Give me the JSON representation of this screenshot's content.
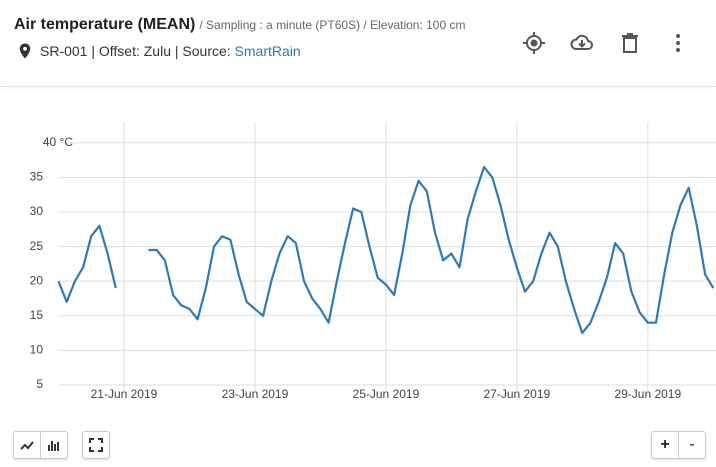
{
  "header": {
    "title": "Air temperature (MEAN)",
    "subtitle": "/ Sampling : a minute (PT60S) / Elevation: 100 cm",
    "meta": "SR-001 | Offset: Zulu | Source:",
    "source_link": "SmartRain"
  },
  "controls": {
    "zoom_in": "+",
    "zoom_out": "-"
  },
  "chart_data": {
    "type": "line",
    "x": [
      "2019-06-20T00:00",
      "2019-06-20T03:00",
      "2019-06-20T06:00",
      "2019-06-20T09:00",
      "2019-06-20T12:00",
      "2019-06-20T15:00",
      "2019-06-20T18:00",
      "2019-06-20T21:00",
      "2019-06-21T00:00",
      "2019-06-21T03:00",
      "2019-06-21T06:00",
      "2019-06-21T09:00",
      "2019-06-21T12:00",
      "2019-06-21T15:00",
      "2019-06-21T18:00",
      "2019-06-21T21:00",
      "2019-06-22T00:00",
      "2019-06-22T03:00",
      "2019-06-22T06:00",
      "2019-06-22T09:00",
      "2019-06-22T12:00",
      "2019-06-22T15:00",
      "2019-06-22T18:00",
      "2019-06-22T21:00",
      "2019-06-23T00:00",
      "2019-06-23T03:00",
      "2019-06-23T06:00",
      "2019-06-23T09:00",
      "2019-06-23T12:00",
      "2019-06-23T15:00",
      "2019-06-23T18:00",
      "2019-06-23T21:00",
      "2019-06-24T00:00",
      "2019-06-24T03:00",
      "2019-06-24T06:00",
      "2019-06-24T09:00",
      "2019-06-24T12:00",
      "2019-06-24T15:00",
      "2019-06-24T18:00",
      "2019-06-24T21:00",
      "2019-06-25T00:00",
      "2019-06-25T03:00",
      "2019-06-25T06:00",
      "2019-06-25T09:00",
      "2019-06-25T12:00",
      "2019-06-25T15:00",
      "2019-06-25T18:00",
      "2019-06-25T21:00",
      "2019-06-26T00:00",
      "2019-06-26T03:00",
      "2019-06-26T06:00",
      "2019-06-26T09:00",
      "2019-06-26T12:00",
      "2019-06-26T15:00",
      "2019-06-26T18:00",
      "2019-06-26T21:00",
      "2019-06-27T00:00",
      "2019-06-27T03:00",
      "2019-06-27T06:00",
      "2019-06-27T09:00",
      "2019-06-27T12:00",
      "2019-06-27T15:00",
      "2019-06-27T18:00",
      "2019-06-27T21:00",
      "2019-06-28T00:00",
      "2019-06-28T03:00",
      "2019-06-28T06:00",
      "2019-06-28T09:00",
      "2019-06-28T12:00",
      "2019-06-28T15:00",
      "2019-06-28T18:00",
      "2019-06-28T21:00",
      "2019-06-29T00:00",
      "2019-06-29T03:00",
      "2019-06-29T06:00",
      "2019-06-29T09:00",
      "2019-06-29T12:00",
      "2019-06-29T15:00",
      "2019-06-29T18:00",
      "2019-06-29T21:00",
      "2019-06-30T00:00"
    ],
    "series": [
      {
        "color": "#2f7ab5",
        "values": [
          20,
          17,
          20,
          22,
          26.5,
          28,
          24,
          19,
          null,
          null,
          null,
          24.5,
          24.5,
          23,
          18,
          16.5,
          16,
          14.5,
          19,
          25,
          26.5,
          26,
          21,
          17,
          16,
          15,
          20,
          24,
          26.5,
          25.5,
          20,
          17.5,
          16,
          14,
          20,
          25.5,
          30.5,
          30,
          25,
          20.5,
          19.5,
          18,
          24,
          31,
          34.5,
          33,
          27,
          23,
          24,
          22,
          29,
          33,
          36.5,
          35,
          31,
          26,
          22,
          18.5,
          20,
          24,
          27,
          25,
          20,
          16,
          12.5,
          14,
          17,
          20.5,
          25.5,
          24,
          18.5,
          15.5,
          14,
          14,
          21,
          27,
          31,
          33.5,
          28,
          21,
          19
        ]
      }
    ],
    "xlim": [
      "2019-06-20T00:00",
      "2019-06-30T01:00"
    ],
    "xticks": [
      {
        "value": "2019-06-21T00:00",
        "label": "21-Jun 2019"
      },
      {
        "value": "2019-06-23T00:00",
        "label": "23-Jun 2019"
      },
      {
        "value": "2019-06-25T00:00",
        "label": "25-Jun 2019"
      },
      {
        "value": "2019-06-27T00:00",
        "label": "27-Jun 2019"
      },
      {
        "value": "2019-06-29T00:00",
        "label": "29-Jun 2019"
      }
    ],
    "ylim": [
      5,
      43
    ],
    "yticks": [
      5,
      10,
      15,
      20,
      25,
      30,
      35,
      {
        "value": 40,
        "label": "40 °C"
      }
    ],
    "grid": true
  }
}
